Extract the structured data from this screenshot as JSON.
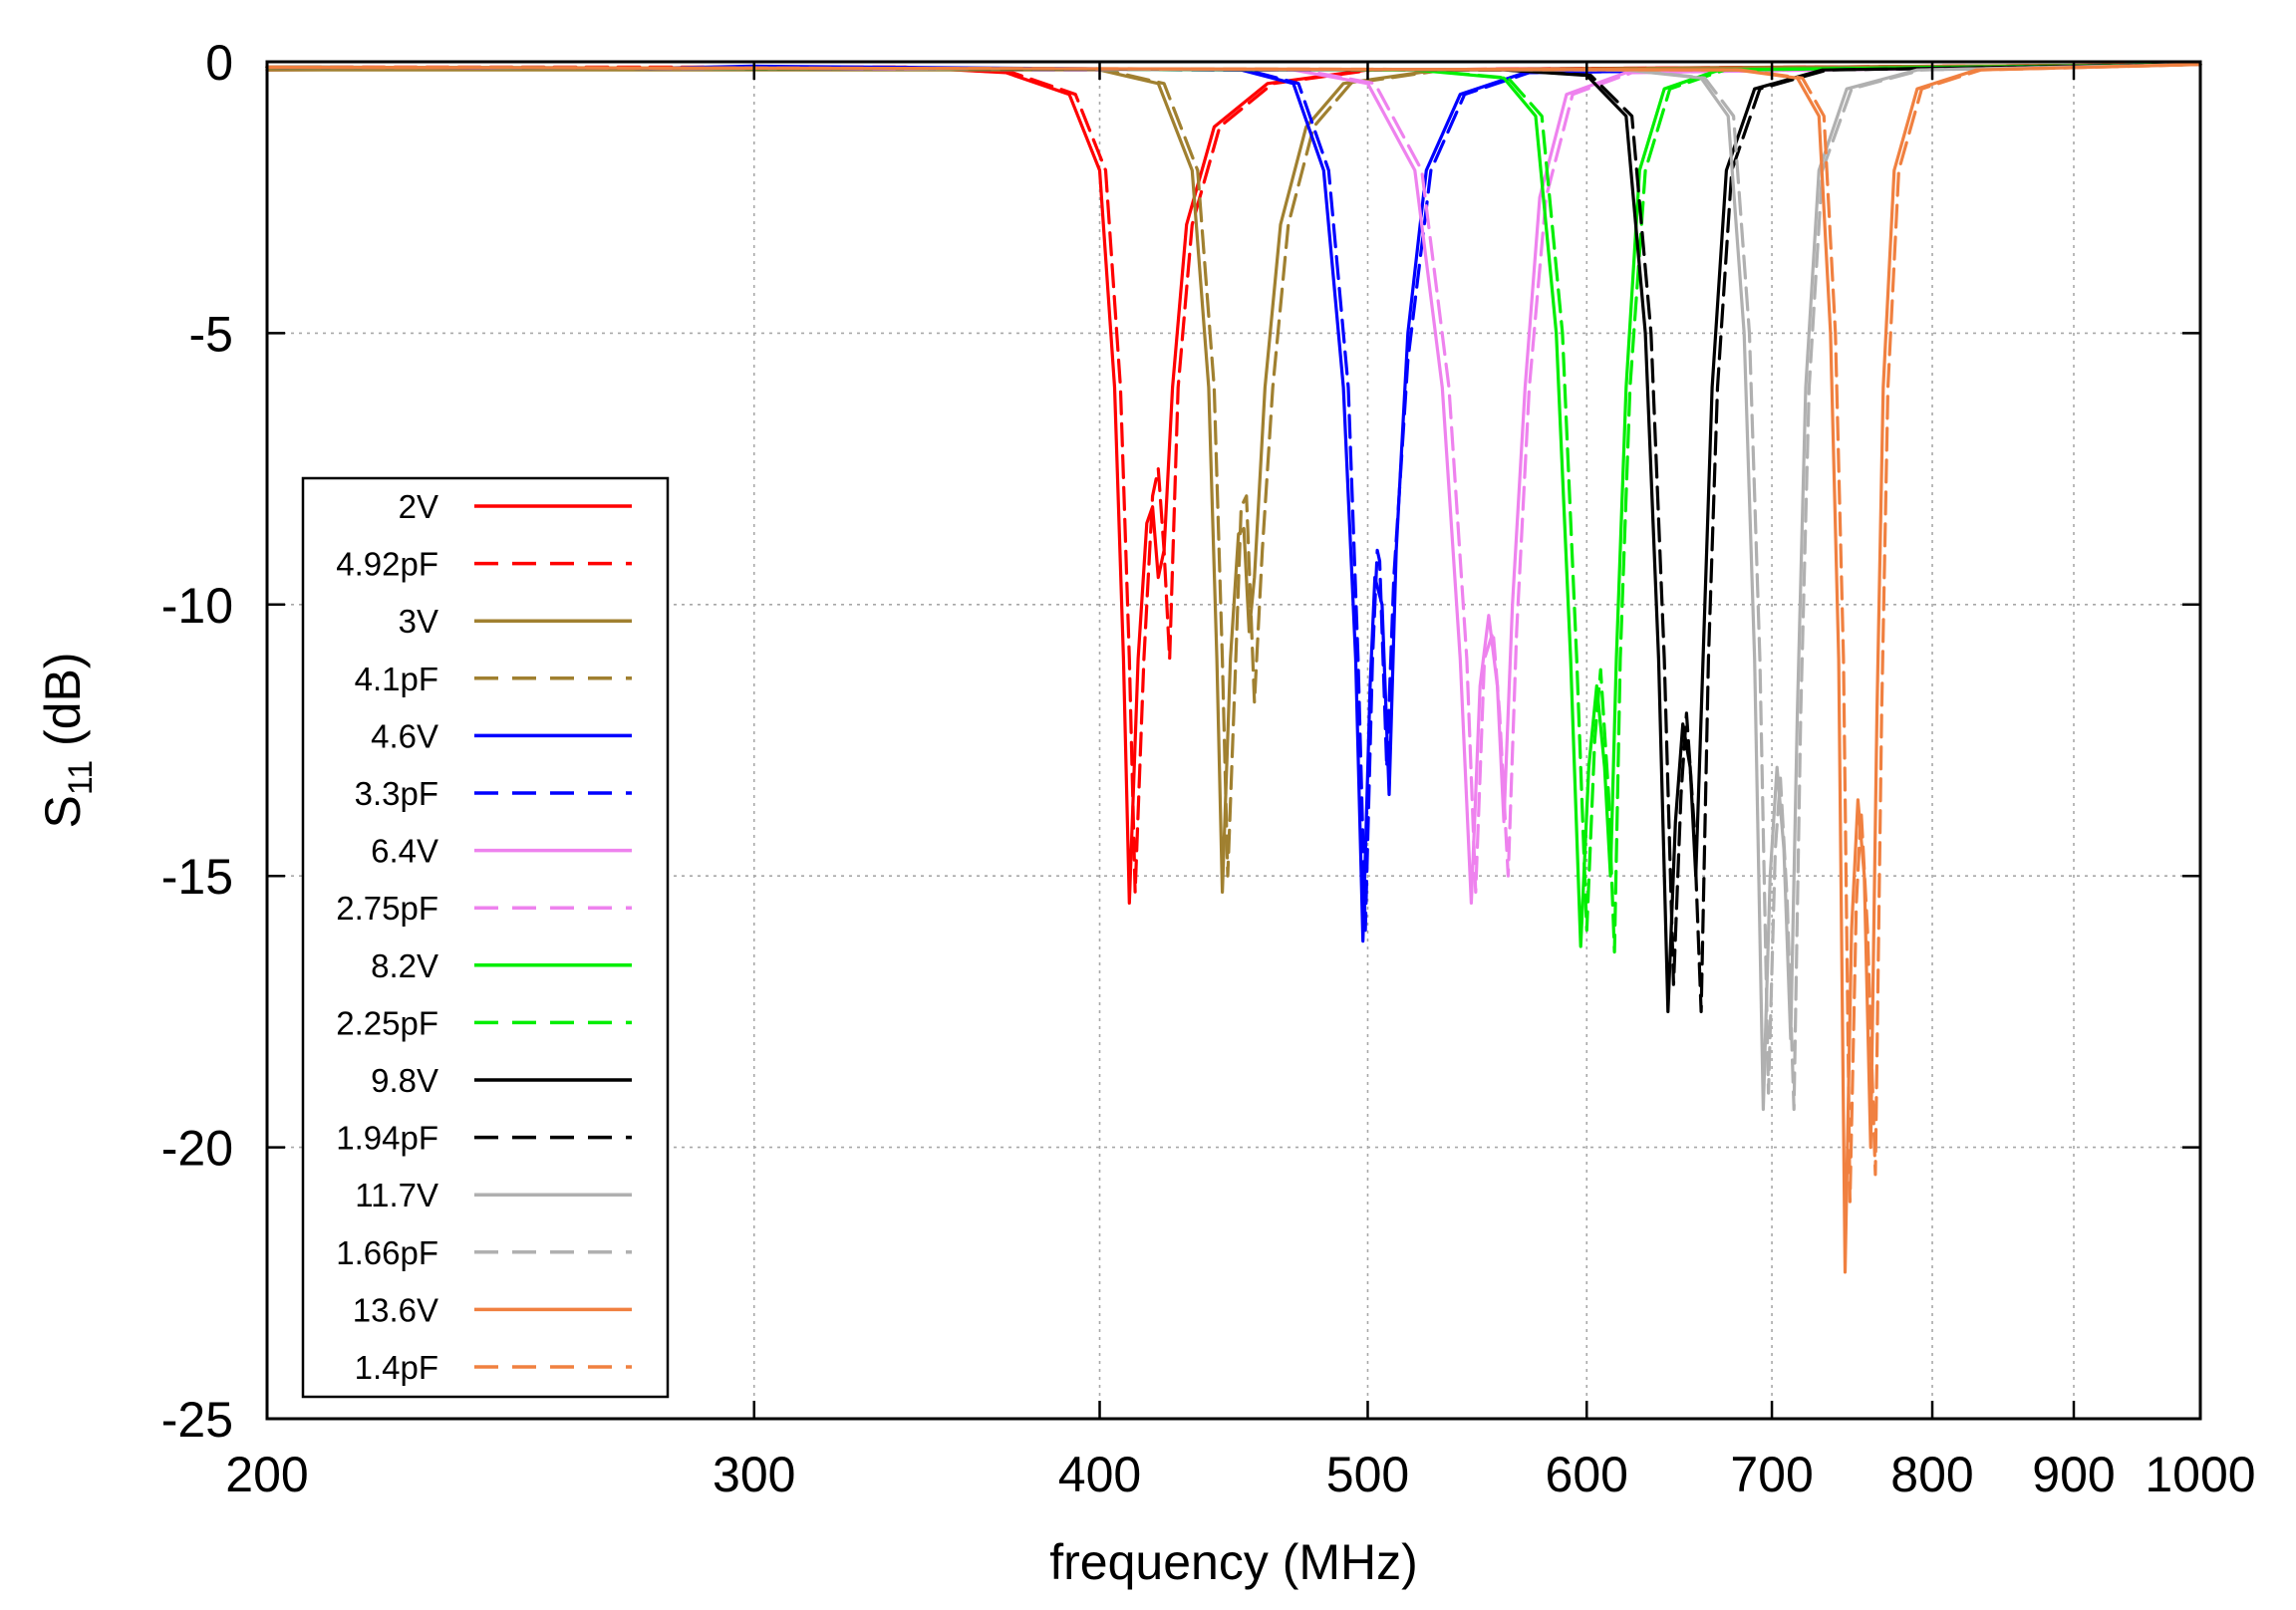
{
  "chart_data": {
    "type": "line",
    "title": "",
    "xlabel": "frequency  (MHz)",
    "ylabel": "S11 (dB)",
    "ylabel_main": "S",
    "ylabel_sub": "11",
    "ylabel_unit": " (dB)",
    "x_scale": "log",
    "xlim": [
      200,
      1000
    ],
    "ylim": [
      -25,
      0
    ],
    "x_ticks": [
      200,
      300,
      400,
      500,
      600,
      700,
      800,
      900,
      1000
    ],
    "x_tick_labels": [
      "200",
      "300",
      "400",
      "500",
      "600",
      "700",
      "800",
      "900",
      "1000"
    ],
    "y_ticks": [
      0,
      -5,
      -10,
      -15,
      -20,
      -25
    ],
    "y_tick_labels": [
      "0",
      "-5",
      "-10",
      "-15",
      "-20",
      "-25"
    ],
    "grid": true,
    "legend_position": "left-bottom",
    "series": [
      {
        "name": "2V",
        "color": "#ff0000",
        "dash": "solid",
        "points": [
          [
            200,
            -0.15
          ],
          [
            340,
            -0.1
          ],
          [
            370,
            -0.2
          ],
          [
            390,
            -0.6
          ],
          [
            400,
            -2.0
          ],
          [
            405,
            -6.0
          ],
          [
            408,
            -11.0
          ],
          [
            410,
            -15.5
          ],
          [
            413,
            -11.0
          ],
          [
            416,
            -8.5
          ],
          [
            418,
            -8.2
          ],
          [
            420,
            -9.5
          ],
          [
            422,
            -9.0
          ],
          [
            425,
            -6.0
          ],
          [
            430,
            -3.0
          ],
          [
            440,
            -1.2
          ],
          [
            460,
            -0.4
          ],
          [
            500,
            -0.15
          ],
          [
            1000,
            -0.05
          ]
        ]
      },
      {
        "name": "4.92pF",
        "color": "#ff0000",
        "dash": "dashed",
        "points": [
          [
            200,
            -0.1
          ],
          [
            340,
            -0.1
          ],
          [
            372,
            -0.2
          ],
          [
            392,
            -0.6
          ],
          [
            402,
            -2.0
          ],
          [
            407,
            -6.0
          ],
          [
            410,
            -11.0
          ],
          [
            412,
            -15.3
          ],
          [
            415,
            -11.0
          ],
          [
            418,
            -8.0
          ],
          [
            420,
            -7.5
          ],
          [
            422,
            -9.0
          ],
          [
            424,
            -11.0
          ],
          [
            427,
            -6.0
          ],
          [
            432,
            -3.0
          ],
          [
            442,
            -1.2
          ],
          [
            462,
            -0.4
          ],
          [
            502,
            -0.15
          ],
          [
            1000,
            -0.05
          ]
        ]
      },
      {
        "name": "3V",
        "color": "#a08030",
        "dash": "solid",
        "points": [
          [
            200,
            -0.15
          ],
          [
            400,
            -0.15
          ],
          [
            420,
            -0.4
          ],
          [
            432,
            -2.0
          ],
          [
            438,
            -6.0
          ],
          [
            441,
            -11.0
          ],
          [
            443,
            -15.3
          ],
          [
            446,
            -11.0
          ],
          [
            449,
            -8.7
          ],
          [
            451,
            -8.6
          ],
          [
            453,
            -10.5
          ],
          [
            455,
            -9.5
          ],
          [
            459,
            -6.0
          ],
          [
            465,
            -3.0
          ],
          [
            475,
            -1.2
          ],
          [
            490,
            -0.4
          ],
          [
            530,
            -0.15
          ],
          [
            1000,
            -0.05
          ]
        ]
      },
      {
        "name": "4.1pF",
        "color": "#a08030",
        "dash": "dashed",
        "points": [
          [
            200,
            -0.1
          ],
          [
            402,
            -0.15
          ],
          [
            422,
            -0.4
          ],
          [
            434,
            -2.0
          ],
          [
            440,
            -6.0
          ],
          [
            443,
            -11.0
          ],
          [
            445,
            -15.0
          ],
          [
            448,
            -11.0
          ],
          [
            450,
            -8.2
          ],
          [
            452,
            -8.0
          ],
          [
            455,
            -11.8
          ],
          [
            458,
            -9.0
          ],
          [
            462,
            -6.0
          ],
          [
            468,
            -3.0
          ],
          [
            478,
            -1.2
          ],
          [
            493,
            -0.4
          ],
          [
            533,
            -0.15
          ],
          [
            1000,
            -0.05
          ]
        ]
      },
      {
        "name": "4.6V",
        "color": "#0000ff",
        "dash": "solid",
        "points": [
          [
            200,
            -0.1
          ],
          [
            275,
            -0.12
          ],
          [
            300,
            -0.08
          ],
          [
            450,
            -0.15
          ],
          [
            470,
            -0.4
          ],
          [
            482,
            -2.0
          ],
          [
            490,
            -6.0
          ],
          [
            495,
            -11.0
          ],
          [
            498,
            -16.2
          ],
          [
            501,
            -11.5
          ],
          [
            503,
            -9.5
          ],
          [
            506,
            -10.0
          ],
          [
            509,
            -13.5
          ],
          [
            512,
            -9.0
          ],
          [
            517,
            -5.0
          ],
          [
            525,
            -2.0
          ],
          [
            540,
            -0.6
          ],
          [
            570,
            -0.2
          ],
          [
            1000,
            -0.05
          ]
        ]
      },
      {
        "name": "3.3pF",
        "color": "#0000ff",
        "dash": "dashed",
        "points": [
          [
            200,
            -0.1
          ],
          [
            452,
            -0.15
          ],
          [
            472,
            -0.4
          ],
          [
            484,
            -2.0
          ],
          [
            492,
            -6.0
          ],
          [
            496,
            -11.0
          ],
          [
            499,
            -16.0
          ],
          [
            502,
            -11.0
          ],
          [
            504,
            -9.0
          ],
          [
            505,
            -9.2
          ],
          [
            508,
            -13.0
          ],
          [
            511,
            -9.5
          ],
          [
            517,
            -5.5
          ],
          [
            527,
            -2.0
          ],
          [
            542,
            -0.6
          ],
          [
            572,
            -0.2
          ],
          [
            1000,
            -0.05
          ]
        ]
      },
      {
        "name": "6.4V",
        "color": "#ee82ee",
        "dash": "solid",
        "points": [
          [
            200,
            -0.1
          ],
          [
            470,
            -0.15
          ],
          [
            500,
            -0.4
          ],
          [
            520,
            -2.0
          ],
          [
            532,
            -6.0
          ],
          [
            540,
            -11.0
          ],
          [
            545,
            -15.5
          ],
          [
            549,
            -11.5
          ],
          [
            553,
            -10.2
          ],
          [
            557,
            -11.5
          ],
          [
            560,
            -14.0
          ],
          [
            564,
            -10.0
          ],
          [
            570,
            -6.0
          ],
          [
            577,
            -2.5
          ],
          [
            590,
            -0.6
          ],
          [
            620,
            -0.2
          ],
          [
            1000,
            -0.05
          ]
        ]
      },
      {
        "name": "2.75pF",
        "color": "#ee82ee",
        "dash": "dashed",
        "points": [
          [
            200,
            -0.1
          ],
          [
            473,
            -0.15
          ],
          [
            503,
            -0.4
          ],
          [
            523,
            -2.0
          ],
          [
            535,
            -6.0
          ],
          [
            543,
            -11.0
          ],
          [
            547,
            -15.3
          ],
          [
            551,
            -11.0
          ],
          [
            555,
            -10.5
          ],
          [
            558,
            -12.0
          ],
          [
            562,
            -15.0
          ],
          [
            566,
            -10.5
          ],
          [
            572,
            -6.0
          ],
          [
            580,
            -2.5
          ],
          [
            593,
            -0.6
          ],
          [
            623,
            -0.2
          ],
          [
            1000,
            -0.05
          ]
        ]
      },
      {
        "name": "8.2V",
        "color": "#00ee00",
        "dash": "solid",
        "points": [
          [
            200,
            -0.1
          ],
          [
            520,
            -0.15
          ],
          [
            560,
            -0.3
          ],
          [
            575,
            -1.0
          ],
          [
            585,
            -5.0
          ],
          [
            592,
            -11.0
          ],
          [
            597,
            -16.3
          ],
          [
            601,
            -13.0
          ],
          [
            605,
            -11.5
          ],
          [
            609,
            -13.0
          ],
          [
            612,
            -15.0
          ],
          [
            615,
            -11.0
          ],
          [
            620,
            -6.0
          ],
          [
            627,
            -2.0
          ],
          [
            640,
            -0.5
          ],
          [
            670,
            -0.15
          ],
          [
            1000,
            -0.05
          ]
        ]
      },
      {
        "name": "2.25pF",
        "color": "#00ee00",
        "dash": "dashed",
        "points": [
          [
            200,
            -0.1
          ],
          [
            522,
            -0.15
          ],
          [
            562,
            -0.3
          ],
          [
            578,
            -1.0
          ],
          [
            588,
            -5.0
          ],
          [
            595,
            -11.0
          ],
          [
            600,
            -16.0
          ],
          [
            604,
            -12.5
          ],
          [
            607,
            -11.2
          ],
          [
            611,
            -13.5
          ],
          [
            614,
            -16.4
          ],
          [
            617,
            -11.0
          ],
          [
            622,
            -6.0
          ],
          [
            630,
            -2.0
          ],
          [
            643,
            -0.5
          ],
          [
            673,
            -0.15
          ],
          [
            1000,
            -0.05
          ]
        ]
      },
      {
        "name": "9.8V",
        "color": "#000000",
        "dash": "solid",
        "points": [
          [
            200,
            -0.1
          ],
          [
            560,
            -0.15
          ],
          [
            600,
            -0.25
          ],
          [
            620,
            -1.0
          ],
          [
            630,
            -5.0
          ],
          [
            637,
            -11.0
          ],
          [
            642,
            -17.5
          ],
          [
            646,
            -14.0
          ],
          [
            650,
            -12.2
          ],
          [
            654,
            -13.0
          ],
          [
            657,
            -15.0
          ],
          [
            661,
            -11.0
          ],
          [
            666,
            -6.0
          ],
          [
            674,
            -2.0
          ],
          [
            690,
            -0.5
          ],
          [
            730,
            -0.15
          ],
          [
            1000,
            -0.05
          ]
        ]
      },
      {
        "name": "1.94pF",
        "color": "#000000",
        "dash": "dashed",
        "points": [
          [
            200,
            -0.1
          ],
          [
            562,
            -0.15
          ],
          [
            602,
            -0.25
          ],
          [
            623,
            -1.0
          ],
          [
            633,
            -5.0
          ],
          [
            640,
            -11.0
          ],
          [
            645,
            -17.0
          ],
          [
            649,
            -13.5
          ],
          [
            652,
            -12.0
          ],
          [
            656,
            -14.0
          ],
          [
            660,
            -17.5
          ],
          [
            664,
            -11.0
          ],
          [
            669,
            -6.0
          ],
          [
            677,
            -2.0
          ],
          [
            693,
            -0.5
          ],
          [
            733,
            -0.15
          ],
          [
            1000,
            -0.05
          ]
        ]
      },
      {
        "name": "11.7V",
        "color": "#b0b0b0",
        "dash": "solid",
        "points": [
          [
            200,
            -0.1
          ],
          [
            620,
            -0.15
          ],
          [
            660,
            -0.3
          ],
          [
            675,
            -1.0
          ],
          [
            684,
            -5.0
          ],
          [
            690,
            -11.0
          ],
          [
            695,
            -19.3
          ],
          [
            699,
            -15.0
          ],
          [
            703,
            -13.0
          ],
          [
            707,
            -14.5
          ],
          [
            711,
            -18.0
          ],
          [
            715,
            -12.0
          ],
          [
            720,
            -6.0
          ],
          [
            728,
            -2.0
          ],
          [
            745,
            -0.5
          ],
          [
            790,
            -0.15
          ],
          [
            1000,
            -0.05
          ]
        ]
      },
      {
        "name": "1.66pF",
        "color": "#b0b0b0",
        "dash": "dashed",
        "points": [
          [
            200,
            -0.1
          ],
          [
            622,
            -0.15
          ],
          [
            662,
            -0.3
          ],
          [
            678,
            -1.0
          ],
          [
            687,
            -5.0
          ],
          [
            693,
            -11.0
          ],
          [
            698,
            -19.0
          ],
          [
            702,
            -14.5
          ],
          [
            705,
            -13.2
          ],
          [
            709,
            -15.5
          ],
          [
            713,
            -19.3
          ],
          [
            717,
            -12.0
          ],
          [
            722,
            -6.0
          ],
          [
            730,
            -2.0
          ],
          [
            748,
            -0.5
          ],
          [
            793,
            -0.15
          ],
          [
            1000,
            -0.05
          ]
        ]
      },
      {
        "name": "13.6V",
        "color": "#f08040",
        "dash": "solid",
        "points": [
          [
            200,
            -0.1
          ],
          [
            680,
            -0.15
          ],
          [
            715,
            -0.3
          ],
          [
            728,
            -1.0
          ],
          [
            735,
            -5.0
          ],
          [
            740,
            -11.0
          ],
          [
            744,
            -22.3
          ],
          [
            748,
            -16.0
          ],
          [
            752,
            -13.6
          ],
          [
            756,
            -15.0
          ],
          [
            760,
            -20.0
          ],
          [
            764,
            -12.0
          ],
          [
            768,
            -6.0
          ],
          [
            775,
            -2.0
          ],
          [
            790,
            -0.5
          ],
          [
            830,
            -0.15
          ],
          [
            1000,
            -0.05
          ]
        ]
      },
      {
        "name": "1.4pF",
        "color": "#f08040",
        "dash": "dashed",
        "points": [
          [
            200,
            -0.1
          ],
          [
            682,
            -0.15
          ],
          [
            718,
            -0.3
          ],
          [
            731,
            -1.0
          ],
          [
            738,
            -5.0
          ],
          [
            743,
            -11.0
          ],
          [
            747,
            -21.0
          ],
          [
            751,
            -15.5
          ],
          [
            754,
            -13.8
          ],
          [
            758,
            -16.0
          ],
          [
            763,
            -20.5
          ],
          [
            767,
            -12.0
          ],
          [
            771,
            -6.0
          ],
          [
            778,
            -2.0
          ],
          [
            793,
            -0.5
          ],
          [
            833,
            -0.15
          ],
          [
            1000,
            -0.05
          ]
        ]
      }
    ]
  }
}
